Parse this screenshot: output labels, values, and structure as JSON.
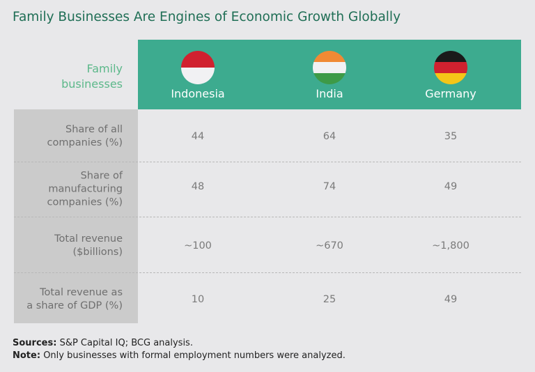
{
  "title": "Family Businesses Are Engines of Economic Growth Globally",
  "chart_data": {
    "type": "table",
    "corner_label": "Family businesses",
    "columns": [
      {
        "name": "Indonesia",
        "flag_colors": [
          "#d0212f",
          "#f1f1f3"
        ]
      },
      {
        "name": "India",
        "flag_colors": [
          "#f08a34",
          "#f1f1f3",
          "#3d9a47"
        ]
      },
      {
        "name": "Germany",
        "flag_colors": [
          "#1a1a1a",
          "#d0212f",
          "#f5c518"
        ]
      }
    ],
    "rows": [
      {
        "label": "Share of all companies (%)",
        "values": [
          "44",
          "64",
          "35"
        ]
      },
      {
        "label": "Share of manufacturing companies (%)",
        "values": [
          "48",
          "74",
          "49"
        ]
      },
      {
        "label": "Total revenue ($billions)",
        "values": [
          "~100",
          "~670",
          "~1,800"
        ]
      },
      {
        "label": "Total revenue as a share of GDP (%)",
        "values": [
          "10",
          "25",
          "49"
        ]
      }
    ]
  },
  "footer": {
    "sources_label": "Sources:",
    "sources": "S&P Capital IQ; BCG analysis.",
    "note_label": "Note:",
    "note": "Only businesses with formal employment numbers were analyzed."
  },
  "colors": {
    "header": "#3dab8f",
    "title": "#1f6e55",
    "label_col": "#cbcbcb"
  }
}
